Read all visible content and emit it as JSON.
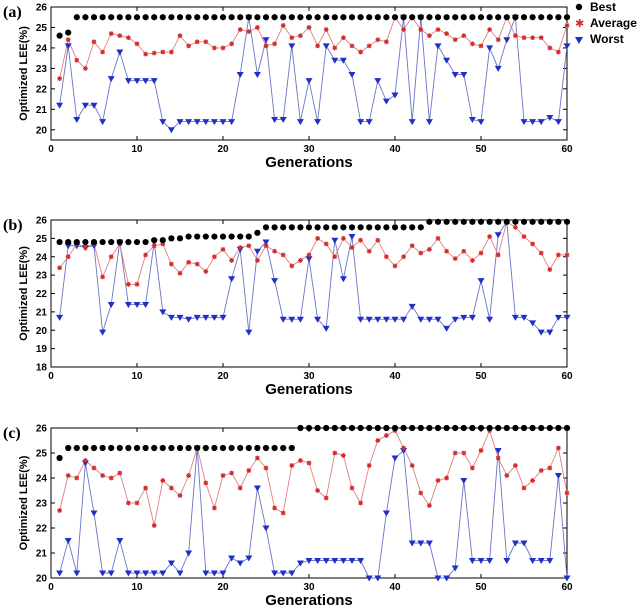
{
  "colors": {
    "best": "#000000",
    "average": "#d42a2a",
    "average_line": "#e08080",
    "worst": "#1f2fc8",
    "worst_line": "#6a74c8"
  },
  "legend": {
    "best": "Best",
    "average": "Average",
    "worst": "Worst"
  },
  "chart_data": [
    {
      "type": "line",
      "panel_label": "(a)",
      "xlabel": "Generations",
      "ylabel": "Optimized LEE(%)",
      "xlim": [
        0,
        60
      ],
      "ylim": [
        19.5,
        26
      ],
      "xticks": [
        0,
        10,
        20,
        30,
        40,
        50,
        60
      ],
      "yticks": [
        20,
        21,
        22,
        23,
        24,
        25,
        26
      ],
      "x": [
        1,
        2,
        3,
        4,
        5,
        6,
        7,
        8,
        9,
        10,
        11,
        12,
        13,
        14,
        15,
        16,
        17,
        18,
        19,
        20,
        21,
        22,
        23,
        24,
        25,
        26,
        27,
        28,
        29,
        30,
        31,
        32,
        33,
        34,
        35,
        36,
        37,
        38,
        39,
        40,
        41,
        42,
        43,
        44,
        45,
        46,
        47,
        48,
        49,
        50,
        51,
        52,
        53,
        54,
        55,
        56,
        57,
        58,
        59,
        60
      ],
      "series": [
        {
          "name": "Best",
          "values": [
            24.6,
            24.75,
            25.5,
            25.5,
            25.5,
            25.5,
            25.5,
            25.5,
            25.5,
            25.5,
            25.5,
            25.5,
            25.5,
            25.5,
            25.5,
            25.5,
            25.5,
            25.5,
            25.5,
            25.5,
            25.5,
            25.5,
            25.5,
            25.5,
            25.5,
            25.5,
            25.5,
            25.5,
            25.5,
            25.5,
            25.5,
            25.5,
            25.5,
            25.5,
            25.5,
            25.5,
            25.5,
            25.5,
            25.5,
            25.5,
            25.5,
            25.5,
            25.5,
            25.5,
            25.5,
            25.5,
            25.5,
            25.5,
            25.5,
            25.5,
            25.5,
            25.5,
            25.5,
            25.5,
            25.5,
            25.5,
            25.5,
            25.5,
            25.5,
            25.5
          ]
        },
        {
          "name": "Average",
          "values": [
            22.5,
            24.4,
            23.4,
            23.0,
            24.3,
            23.8,
            24.7,
            24.6,
            24.5,
            24.2,
            23.7,
            23.75,
            23.8,
            23.8,
            24.6,
            24.1,
            24.3,
            24.3,
            24.0,
            24.0,
            24.2,
            24.9,
            24.8,
            25.0,
            24.1,
            24.2,
            25.1,
            24.5,
            24.6,
            25.0,
            24.1,
            24.9,
            24.0,
            24.5,
            24.1,
            23.8,
            24.1,
            24.4,
            24.3,
            25.5,
            24.9,
            25.5,
            24.9,
            24.6,
            24.9,
            24.7,
            24.4,
            24.6,
            24.2,
            24.1,
            24.9,
            24.4,
            25.5,
            24.6,
            24.5,
            24.5,
            24.5,
            24.0,
            23.8,
            25.1
          ]
        },
        {
          "name": "Worst",
          "values": [
            21.2,
            24.1,
            20.5,
            21.2,
            21.2,
            20.4,
            22.5,
            23.8,
            22.4,
            22.4,
            22.4,
            22.4,
            20.4,
            20.0,
            20.4,
            20.4,
            20.4,
            20.4,
            20.4,
            20.4,
            20.4,
            22.7,
            25.5,
            22.7,
            24.4,
            20.5,
            20.5,
            24.1,
            20.4,
            22.4,
            20.4,
            24.1,
            23.4,
            23.4,
            22.7,
            20.4,
            20.4,
            22.4,
            21.4,
            21.7,
            25.5,
            20.4,
            25.5,
            20.4,
            24.1,
            23.4,
            22.7,
            22.7,
            20.5,
            20.4,
            24.0,
            23.0,
            24.4,
            25.5,
            20.4,
            20.4,
            20.4,
            20.6,
            20.4,
            24.1
          ]
        }
      ]
    },
    {
      "type": "line",
      "panel_label": "(b)",
      "xlabel": "Generations",
      "ylabel": "Optimized LEE(%)",
      "xlim": [
        0,
        60
      ],
      "ylim": [
        18,
        26
      ],
      "xticks": [
        0,
        10,
        20,
        30,
        40,
        50,
        60
      ],
      "yticks": [
        18,
        19,
        20,
        21,
        22,
        23,
        24,
        25,
        26
      ],
      "x": [
        1,
        2,
        3,
        4,
        5,
        6,
        7,
        8,
        9,
        10,
        11,
        12,
        13,
        14,
        15,
        16,
        17,
        18,
        19,
        20,
        21,
        22,
        23,
        24,
        25,
        26,
        27,
        28,
        29,
        30,
        31,
        32,
        33,
        34,
        35,
        36,
        37,
        38,
        39,
        40,
        41,
        42,
        43,
        44,
        45,
        46,
        47,
        48,
        49,
        50,
        51,
        52,
        53,
        54,
        55,
        56,
        57,
        58,
        59,
        60
      ],
      "series": [
        {
          "name": "Best",
          "values": [
            24.8,
            24.8,
            24.8,
            24.8,
            24.8,
            24.8,
            24.8,
            24.8,
            24.8,
            24.8,
            24.8,
            24.9,
            24.9,
            25.0,
            25.0,
            25.1,
            25.1,
            25.1,
            25.1,
            25.1,
            25.1,
            25.1,
            25.1,
            25.3,
            25.6,
            25.6,
            25.6,
            25.6,
            25.6,
            25.6,
            25.6,
            25.6,
            25.6,
            25.6,
            25.6,
            25.6,
            25.6,
            25.6,
            25.6,
            25.6,
            25.6,
            25.6,
            25.6,
            25.9,
            25.9,
            25.9,
            25.9,
            25.9,
            25.9,
            25.9,
            25.9,
            25.9,
            25.9,
            25.9,
            25.9,
            25.9,
            25.9,
            25.9,
            25.9,
            25.9
          ]
        },
        {
          "name": "Average",
          "values": [
            23.4,
            24.0,
            24.7,
            24.5,
            24.7,
            22.9,
            24.0,
            24.7,
            22.5,
            22.5,
            24.1,
            24.6,
            24.7,
            23.6,
            23.1,
            23.7,
            23.6,
            23.2,
            24.0,
            24.4,
            23.8,
            24.5,
            24.6,
            23.8,
            24.6,
            24.3,
            24.1,
            23.5,
            23.8,
            24.1,
            25.0,
            24.7,
            24.0,
            25.0,
            24.5,
            24.9,
            24.3,
            24.9,
            24.0,
            23.5,
            24.0,
            24.6,
            24.2,
            24.4,
            25.0,
            24.3,
            23.9,
            24.3,
            23.8,
            24.2,
            25.1,
            24.1,
            25.9,
            25.6,
            25.1,
            24.7,
            24.2,
            23.3,
            24.1,
            24.1
          ]
        },
        {
          "name": "Worst",
          "values": [
            20.7,
            24.6,
            24.6,
            24.5,
            24.6,
            19.9,
            21.4,
            24.8,
            21.4,
            21.4,
            21.4,
            24.8,
            21.0,
            20.7,
            20.7,
            20.6,
            20.7,
            20.7,
            20.7,
            20.7,
            22.8,
            24.4,
            19.9,
            24.3,
            24.8,
            22.7,
            20.6,
            20.6,
            20.6,
            23.9,
            20.6,
            20.1,
            24.9,
            22.8,
            25.1,
            20.6,
            20.6,
            20.6,
            20.6,
            20.6,
            20.6,
            21.3,
            20.6,
            20.6,
            20.6,
            20.1,
            20.6,
            20.7,
            20.7,
            22.7,
            20.6,
            25.2,
            25.9,
            20.7,
            20.7,
            20.4,
            19.9,
            19.9,
            20.7,
            20.7
          ]
        }
      ]
    },
    {
      "type": "line",
      "panel_label": "(c)",
      "xlabel": "Generations",
      "ylabel": "Optimized LEE(%)",
      "xlim": [
        0,
        60
      ],
      "ylim": [
        20,
        26
      ],
      "xticks": [
        0,
        10,
        20,
        30,
        40,
        50,
        60
      ],
      "yticks": [
        20,
        21,
        22,
        23,
        24,
        25,
        26
      ],
      "x": [
        1,
        2,
        3,
        4,
        5,
        6,
        7,
        8,
        9,
        10,
        11,
        12,
        13,
        14,
        15,
        16,
        17,
        18,
        19,
        20,
        21,
        22,
        23,
        24,
        25,
        26,
        27,
        28,
        29,
        30,
        31,
        32,
        33,
        34,
        35,
        36,
        37,
        38,
        39,
        40,
        41,
        42,
        43,
        44,
        45,
        46,
        47,
        48,
        49,
        50,
        51,
        52,
        53,
        54,
        55,
        56,
        57,
        58,
        59,
        60
      ],
      "series": [
        {
          "name": "Best",
          "values": [
            24.8,
            25.2,
            25.2,
            25.2,
            25.2,
            25.2,
            25.2,
            25.2,
            25.2,
            25.2,
            25.2,
            25.2,
            25.2,
            25.2,
            25.2,
            25.2,
            25.2,
            25.2,
            25.2,
            25.2,
            25.2,
            25.2,
            25.2,
            25.2,
            25.2,
            25.2,
            25.2,
            25.2,
            26.0,
            26.0,
            26.0,
            26.0,
            26.0,
            26.0,
            26.0,
            26.0,
            26.0,
            26.0,
            26.0,
            26.0,
            26.0,
            26.0,
            26.0,
            26.0,
            26.0,
            26.0,
            26.0,
            26.0,
            26.0,
            26.0,
            26.0,
            26.0,
            26.0,
            26.0,
            26.0,
            26.0,
            26.0,
            26.0,
            26.0,
            26.0
          ]
        },
        {
          "name": "Average",
          "values": [
            22.7,
            24.1,
            24.0,
            24.7,
            24.4,
            24.1,
            24.0,
            24.2,
            23.0,
            23.0,
            23.6,
            22.1,
            23.9,
            23.6,
            23.3,
            24.1,
            25.2,
            23.8,
            22.8,
            24.1,
            24.2,
            23.6,
            24.3,
            24.8,
            24.4,
            22.8,
            22.6,
            24.5,
            24.7,
            24.6,
            23.5,
            23.2,
            25.0,
            24.9,
            23.6,
            23.0,
            24.5,
            25.5,
            25.7,
            25.9,
            25.2,
            24.5,
            23.4,
            22.9,
            23.9,
            24.0,
            25.0,
            25.0,
            24.4,
            25.1,
            25.9,
            24.8,
            24.1,
            24.5,
            23.6,
            23.9,
            24.3,
            24.4,
            25.2,
            23.4
          ]
        },
        {
          "name": "Worst",
          "values": [
            20.2,
            21.5,
            20.2,
            24.6,
            22.6,
            20.2,
            20.2,
            21.5,
            20.2,
            20.2,
            20.2,
            20.2,
            20.2,
            20.6,
            20.2,
            21.0,
            25.2,
            20.2,
            20.2,
            20.2,
            20.8,
            20.6,
            20.8,
            23.6,
            22.0,
            20.2,
            20.2,
            20.2,
            20.6,
            20.7,
            20.7,
            20.7,
            20.7,
            20.7,
            20.7,
            20.7,
            20.0,
            20.0,
            22.6,
            24.8,
            25.1,
            21.4,
            21.4,
            21.4,
            20.0,
            20.0,
            20.4,
            23.9,
            20.7,
            20.7,
            20.7,
            25.1,
            20.7,
            21.4,
            21.4,
            20.7,
            20.7,
            20.7,
            24.1,
            20.0
          ]
        }
      ]
    }
  ]
}
